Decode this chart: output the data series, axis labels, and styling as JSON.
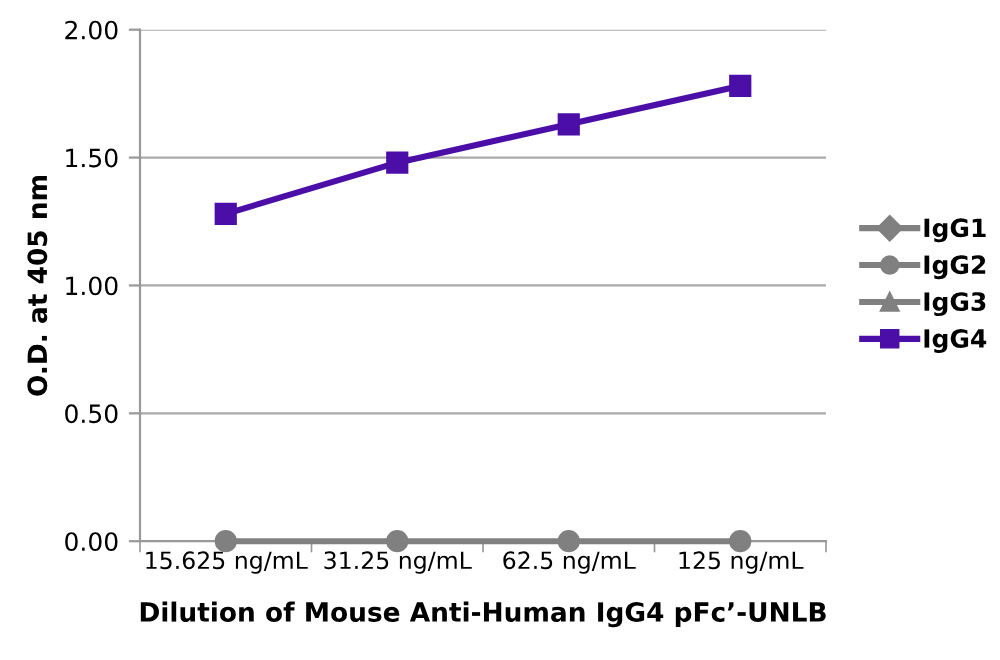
{
  "chart_data": {
    "type": "line",
    "xlabel": "Dilution of Mouse Anti-Human IgG4 pFc’-UNLB",
    "ylabel": "O.D. at 405 nm",
    "categories": [
      "15.625 ng/mL",
      "31.25 ng/mL",
      "62.5 ng/mL",
      "125 ng/mL"
    ],
    "series": [
      {
        "name": "IgG1",
        "color": "#808080",
        "marker": "diamond",
        "values": [
          null,
          null,
          null,
          null
        ]
      },
      {
        "name": "IgG2",
        "color": "#808080",
        "marker": "circle",
        "values": [
          0.0,
          0.0,
          0.0,
          0.0
        ]
      },
      {
        "name": "IgG3",
        "color": "#808080",
        "marker": "triangle",
        "values": [
          null,
          null,
          null,
          null
        ]
      },
      {
        "name": "IgG4",
        "color": "#4b0fa8",
        "marker": "square",
        "values": [
          1.28,
          1.48,
          1.63,
          1.78
        ]
      }
    ],
    "ylim": [
      0,
      2
    ],
    "yticks": [
      {
        "value": 0,
        "label": "0.00"
      },
      {
        "value": 0.5,
        "label": "0.50"
      },
      {
        "value": 1,
        "label": "1.00"
      },
      {
        "value": 1.5,
        "label": "1.50"
      },
      {
        "value": 2,
        "label": "2.00"
      }
    ],
    "grid": "y",
    "legend": "right",
    "line_style": "solid"
  }
}
